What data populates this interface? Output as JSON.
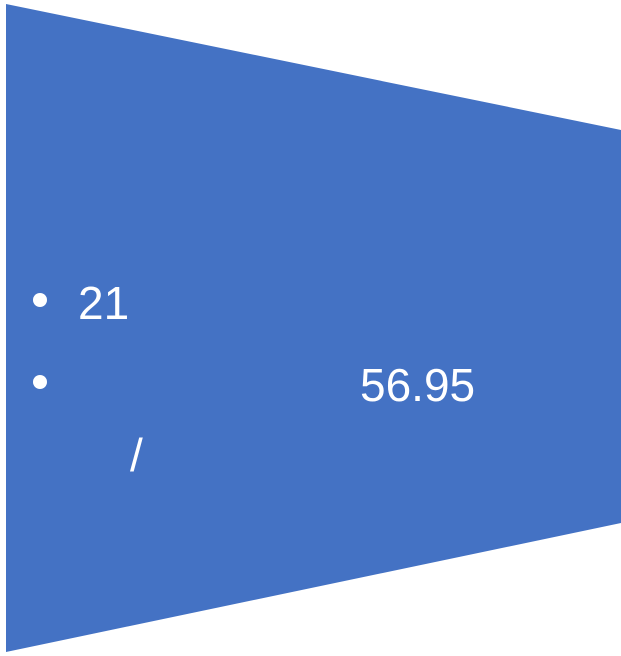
{
  "shape": {
    "fill_color": "#4472C4"
  },
  "bullets": [
    {
      "text": "21"
    },
    {
      "text": "56.95",
      "continuation": "/"
    }
  ]
}
